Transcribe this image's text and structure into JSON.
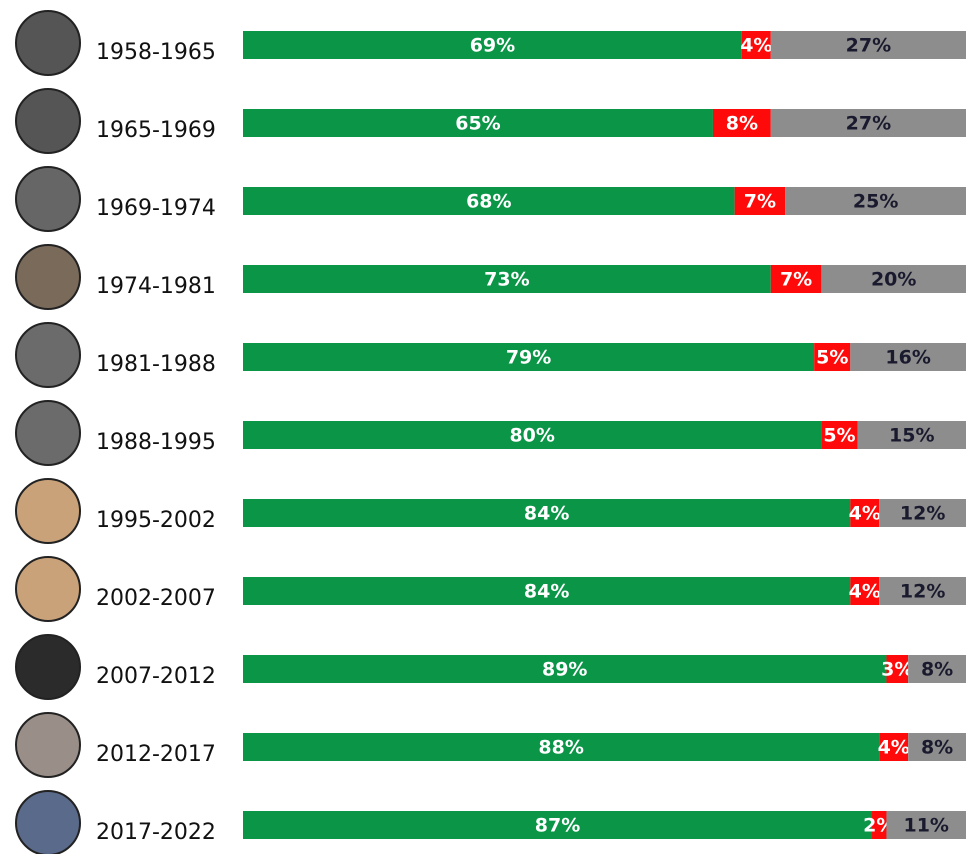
{
  "chart_data": {
    "type": "stacked-bar",
    "categories": [
      "1958-1965",
      "1965-1969",
      "1969-1974",
      "1974-1981",
      "1981-1988",
      "1988-1995",
      "1995-2002",
      "2002-2007",
      "2007-2012",
      "2012-2017",
      "2017-2022"
    ],
    "series": [
      {
        "color": "#0a9547",
        "values": [
          69,
          65,
          68,
          73,
          79,
          80,
          84,
          84,
          89,
          88,
          87
        ],
        "value_labels": [
          "69%",
          "65%",
          "68%",
          "73%",
          "79%",
          "80%",
          "84%",
          "84%",
          "89%",
          "88%",
          "87%"
        ]
      },
      {
        "color": "#ff0a0a",
        "values": [
          4,
          8,
          7,
          7,
          5,
          5,
          4,
          4,
          3,
          4,
          2
        ],
        "value_labels": [
          "4%",
          "8%",
          "7%",
          "7%",
          "5%",
          "5%",
          "4%",
          "4%",
          "3%",
          "4%",
          "2%"
        ]
      },
      {
        "color": "#8d8d8d",
        "values": [
          27,
          27,
          25,
          20,
          16,
          15,
          12,
          12,
          8,
          8,
          11
        ],
        "value_labels": [
          "27%",
          "27%",
          "25%",
          "20%",
          "16%",
          "15%",
          "12%",
          "12%",
          "8%",
          "8%",
          "11%"
        ]
      }
    ]
  }
}
